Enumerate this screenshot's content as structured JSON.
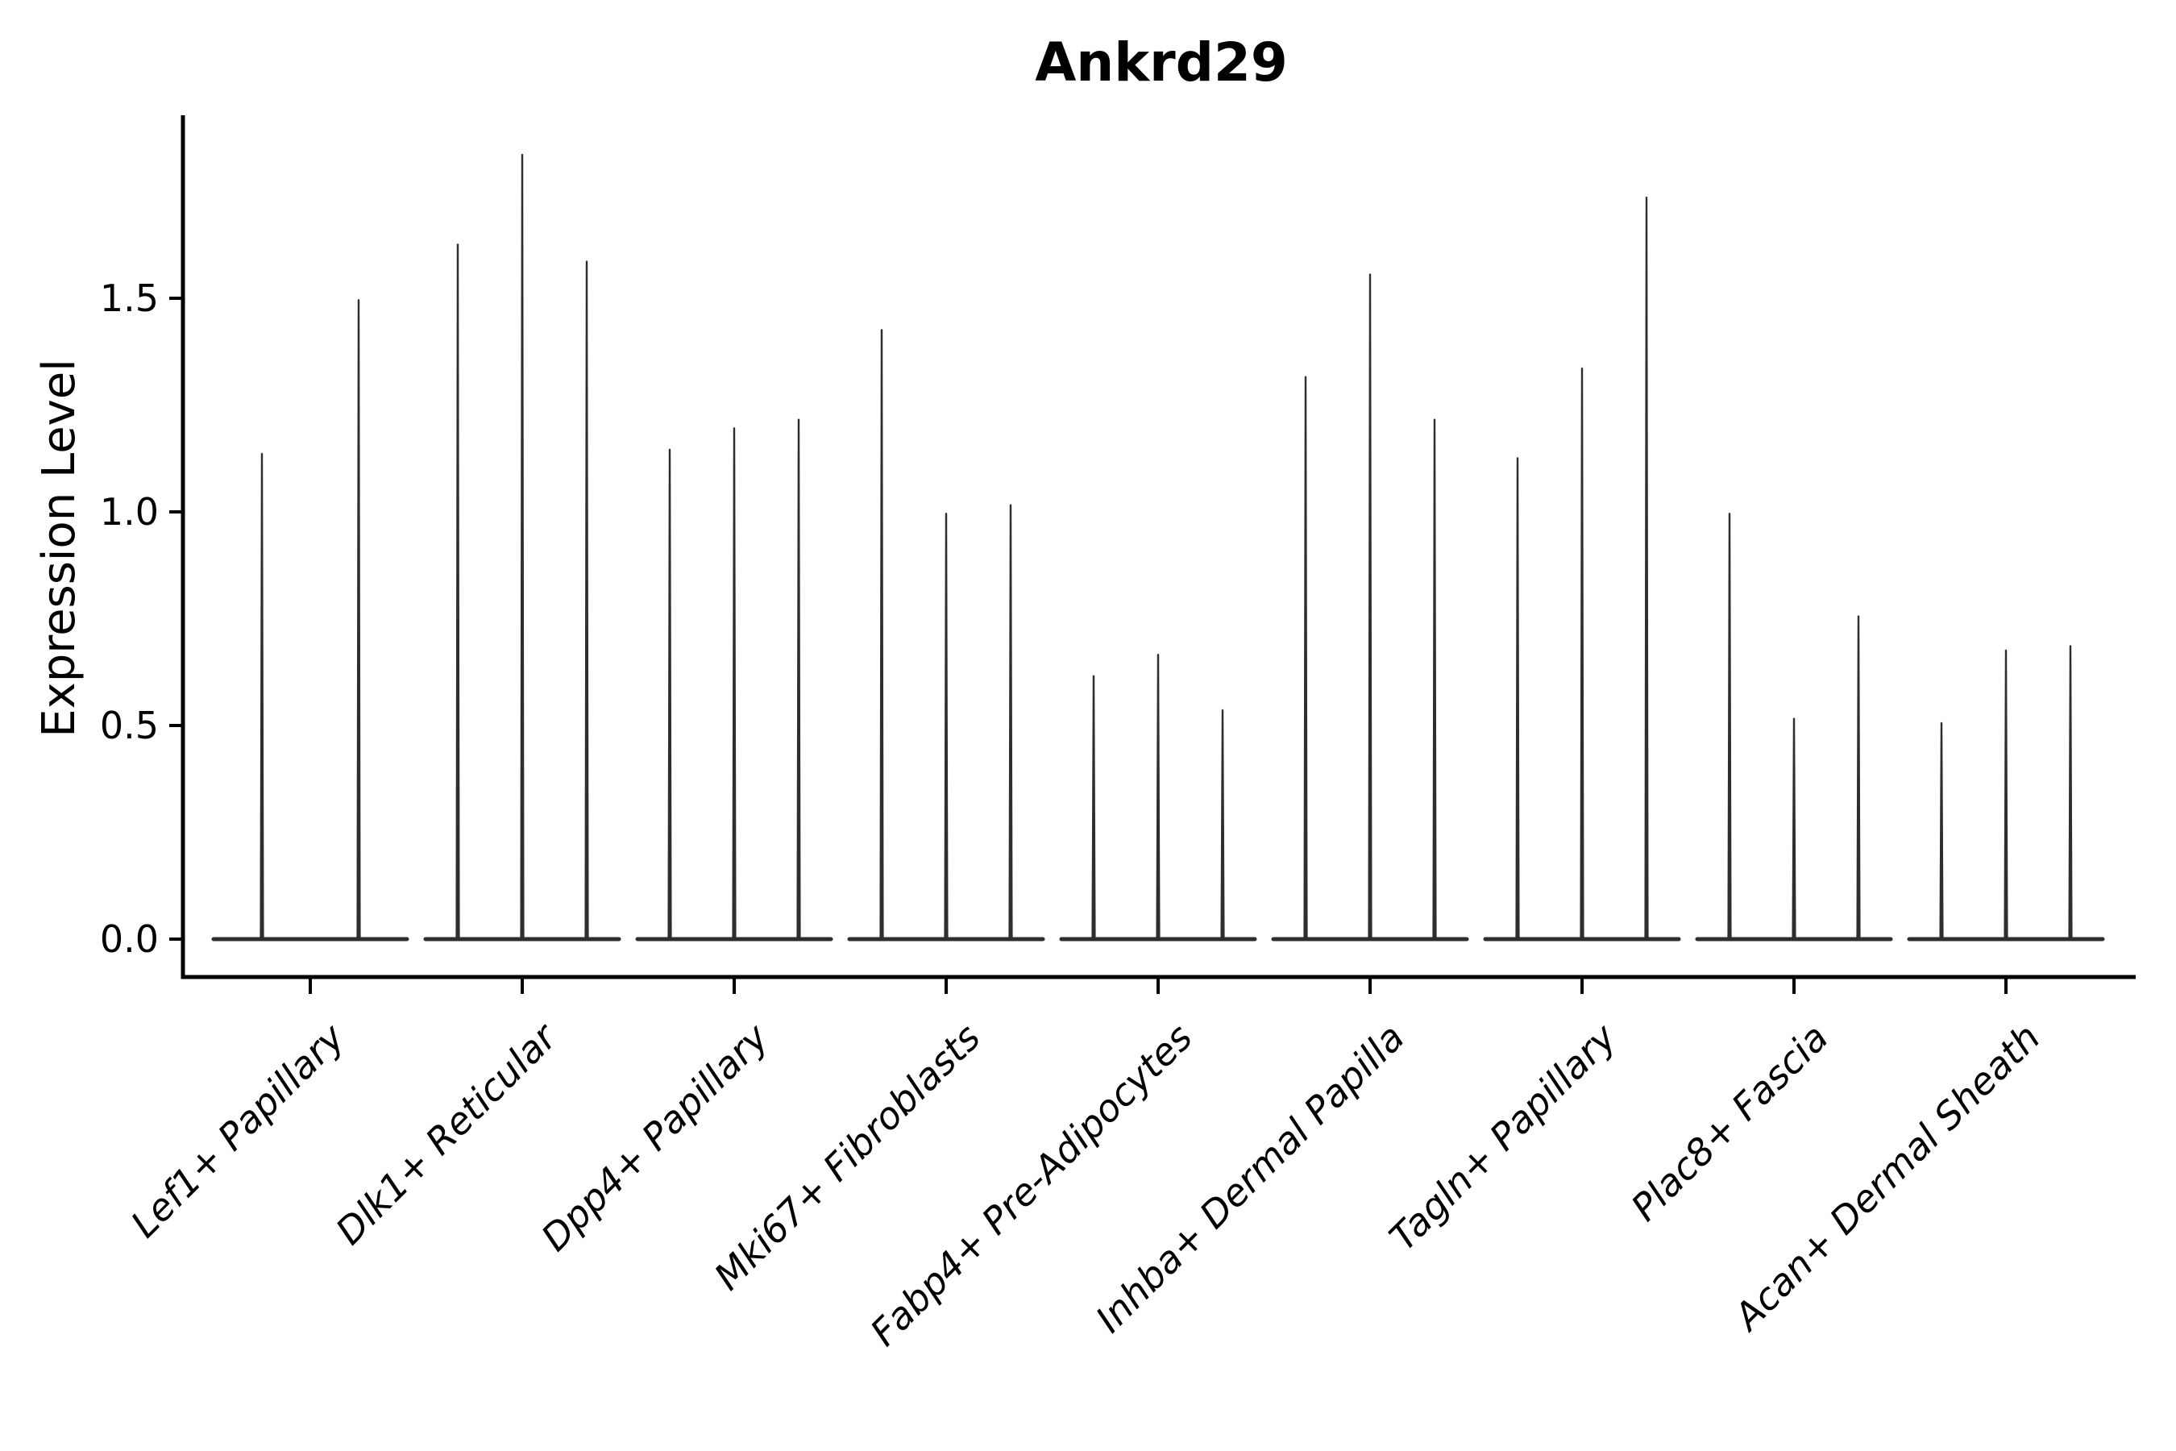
{
  "figure": {
    "title": "Ankrd29",
    "background_color": "#ffffff"
  },
  "y_axis": {
    "label": "Expression Level",
    "tick_labels": [
      "0.0",
      "0.5",
      "1.0",
      "1.5"
    ]
  },
  "chart_data": {
    "type": "violin",
    "title": "Ankrd29",
    "xlabel": "",
    "ylabel": "Expression Level",
    "ylim": [
      -0.09,
      1.93
    ],
    "yticks": [
      0.0,
      0.5,
      1.0,
      1.5
    ],
    "grid": false,
    "legend": false,
    "x_tick_rotation": 45,
    "x_tick_style": "italic",
    "violin_style": "needle-thin violins; bulk of distribution at 0 with a thin spike up to each violin maximum",
    "categories": [
      "Lef1+ Papillary",
      "Dlk1+ Reticular",
      "Dpp4+ Papillary",
      "Mki67+ Fibroblasts",
      "Fabp4+ Pre-Adipocytes",
      "Inhba+ Dermal Papilla",
      "Tagln+ Papillary",
      "Plac8+ Fascia",
      "Acan+ Dermal Sheath"
    ],
    "series": [
      {
        "category": "Lef1+ Papillary",
        "violin_max_values": [
          1.14,
          1.5
        ]
      },
      {
        "category": "Dlk1+ Reticular",
        "violin_max_values": [
          1.63,
          1.84,
          1.59
        ]
      },
      {
        "category": "Dpp4+ Papillary",
        "violin_max_values": [
          1.15,
          1.2,
          1.22
        ]
      },
      {
        "category": "Mki67+ Fibroblasts",
        "violin_max_values": [
          1.43,
          1.0,
          1.02
        ]
      },
      {
        "category": "Fabp4+ Pre-Adipocytes",
        "violin_max_values": [
          0.62,
          0.67,
          0.54
        ]
      },
      {
        "category": "Inhba+ Dermal Papilla",
        "violin_max_values": [
          1.32,
          1.56,
          1.22
        ]
      },
      {
        "category": "Tagln+ Papillary",
        "violin_max_values": [
          1.13,
          1.34,
          1.74
        ]
      },
      {
        "category": "Plac8+ Fascia",
        "violin_max_values": [
          1.0,
          0.52,
          0.76
        ]
      },
      {
        "category": "Acan+ Dermal Sheath",
        "violin_max_values": [
          0.51,
          0.68,
          0.69
        ]
      }
    ],
    "colors": {
      "violin": "#2e2e2e",
      "axis": "#000000",
      "text": "#000000",
      "background": "#ffffff"
    }
  }
}
